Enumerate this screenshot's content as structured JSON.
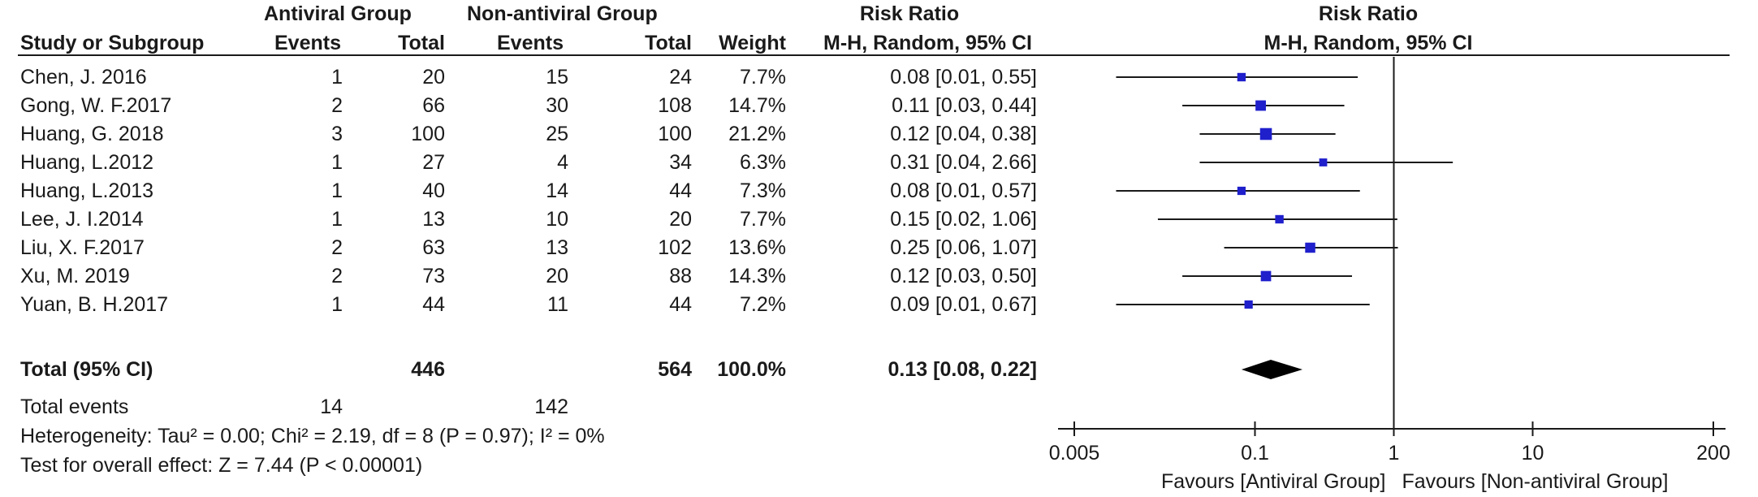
{
  "headers": {
    "group_a": "Antiviral Group",
    "group_b": "Non-antiviral Group",
    "risk_ratio": "Risk Ratio",
    "risk_ratio_plot": "Risk Ratio",
    "study": "Study or Subgroup",
    "events_a": "Events",
    "total_a": "Total",
    "events_b": "Events",
    "total_b": "Total",
    "weight": "Weight",
    "method": "M-H, Random, 95% CI",
    "method_plot": "M-H, Random, 95% CI"
  },
  "studies": [
    {
      "name": "Chen, J. 2016",
      "events_a": "1",
      "total_a": "20",
      "events_b": "15",
      "total_b": "24",
      "weight": "7.7%",
      "ci_text": "0.08 [0.01, 0.55]",
      "rr": 0.08,
      "lo": 0.01,
      "hi": 0.55,
      "w": 7.7
    },
    {
      "name": "Gong, W. F.2017",
      "events_a": "2",
      "total_a": "66",
      "events_b": "30",
      "total_b": "108",
      "weight": "14.7%",
      "ci_text": "0.11 [0.03, 0.44]",
      "rr": 0.11,
      "lo": 0.03,
      "hi": 0.44,
      "w": 14.7
    },
    {
      "name": "Huang, G. 2018",
      "events_a": "3",
      "total_a": "100",
      "events_b": "25",
      "total_b": "100",
      "weight": "21.2%",
      "ci_text": "0.12 [0.04, 0.38]",
      "rr": 0.12,
      "lo": 0.04,
      "hi": 0.38,
      "w": 21.2
    },
    {
      "name": "Huang, L.2012",
      "events_a": "1",
      "total_a": "27",
      "events_b": "4",
      "total_b": "34",
      "weight": "6.3%",
      "ci_text": "0.31 [0.04, 2.66]",
      "rr": 0.31,
      "lo": 0.04,
      "hi": 2.66,
      "w": 6.3
    },
    {
      "name": "Huang, L.2013",
      "events_a": "1",
      "total_a": "40",
      "events_b": "14",
      "total_b": "44",
      "weight": "7.3%",
      "ci_text": "0.08 [0.01, 0.57]",
      "rr": 0.08,
      "lo": 0.01,
      "hi": 0.57,
      "w": 7.3
    },
    {
      "name": "Lee, J. I.2014",
      "events_a": "1",
      "total_a": "13",
      "events_b": "10",
      "total_b": "20",
      "weight": "7.7%",
      "ci_text": "0.15 [0.02, 1.06]",
      "rr": 0.15,
      "lo": 0.02,
      "hi": 1.06,
      "w": 7.7
    },
    {
      "name": "Liu, X. F.2017",
      "events_a": "2",
      "total_a": "63",
      "events_b": "13",
      "total_b": "102",
      "weight": "13.6%",
      "ci_text": "0.25 [0.06, 1.07]",
      "rr": 0.25,
      "lo": 0.06,
      "hi": 1.07,
      "w": 13.6
    },
    {
      "name": "Xu, M. 2019",
      "events_a": "2",
      "total_a": "73",
      "events_b": "20",
      "total_b": "88",
      "weight": "14.3%",
      "ci_text": "0.12 [0.03, 0.50]",
      "rr": 0.12,
      "lo": 0.03,
      "hi": 0.5,
      "w": 14.3
    },
    {
      "name": "Yuan, B. H.2017",
      "events_a": "1",
      "total_a": "44",
      "events_b": "11",
      "total_b": "44",
      "weight": "7.2%",
      "ci_text": "0.09 [0.01, 0.67]",
      "rr": 0.09,
      "lo": 0.01,
      "hi": 0.67,
      "w": 7.2
    }
  ],
  "total": {
    "label": "Total (95% CI)",
    "total_a": "446",
    "total_b": "564",
    "weight": "100.0%",
    "ci_text": "0.13 [0.08, 0.22]",
    "rr": 0.13,
    "lo": 0.08,
    "hi": 0.22
  },
  "total_events": {
    "label": "Total events",
    "events_a": "14",
    "events_b": "142"
  },
  "heterogeneity": "Heterogeneity: Tau² = 0.00; Chi² = 2.19, df = 8 (P = 0.97); I² = 0%",
  "overall_effect": "Test for overall effect: Z = 7.44 (P < 0.00001)",
  "chart_data": {
    "type": "forest",
    "scale": "log",
    "xlim": [
      0.005,
      200
    ],
    "ticks": [
      0.005,
      0.1,
      1,
      10,
      200
    ],
    "tick_labels": [
      "0.005",
      "0.1",
      "1",
      "10",
      "200"
    ],
    "reference_line": 1,
    "favours_left": "Favours [Antiviral Group]",
    "favours_right": "Favours [Non-antiviral Group]"
  },
  "colors": {
    "marker": "#1f1fcc",
    "ink": "#1a1a1a"
  }
}
